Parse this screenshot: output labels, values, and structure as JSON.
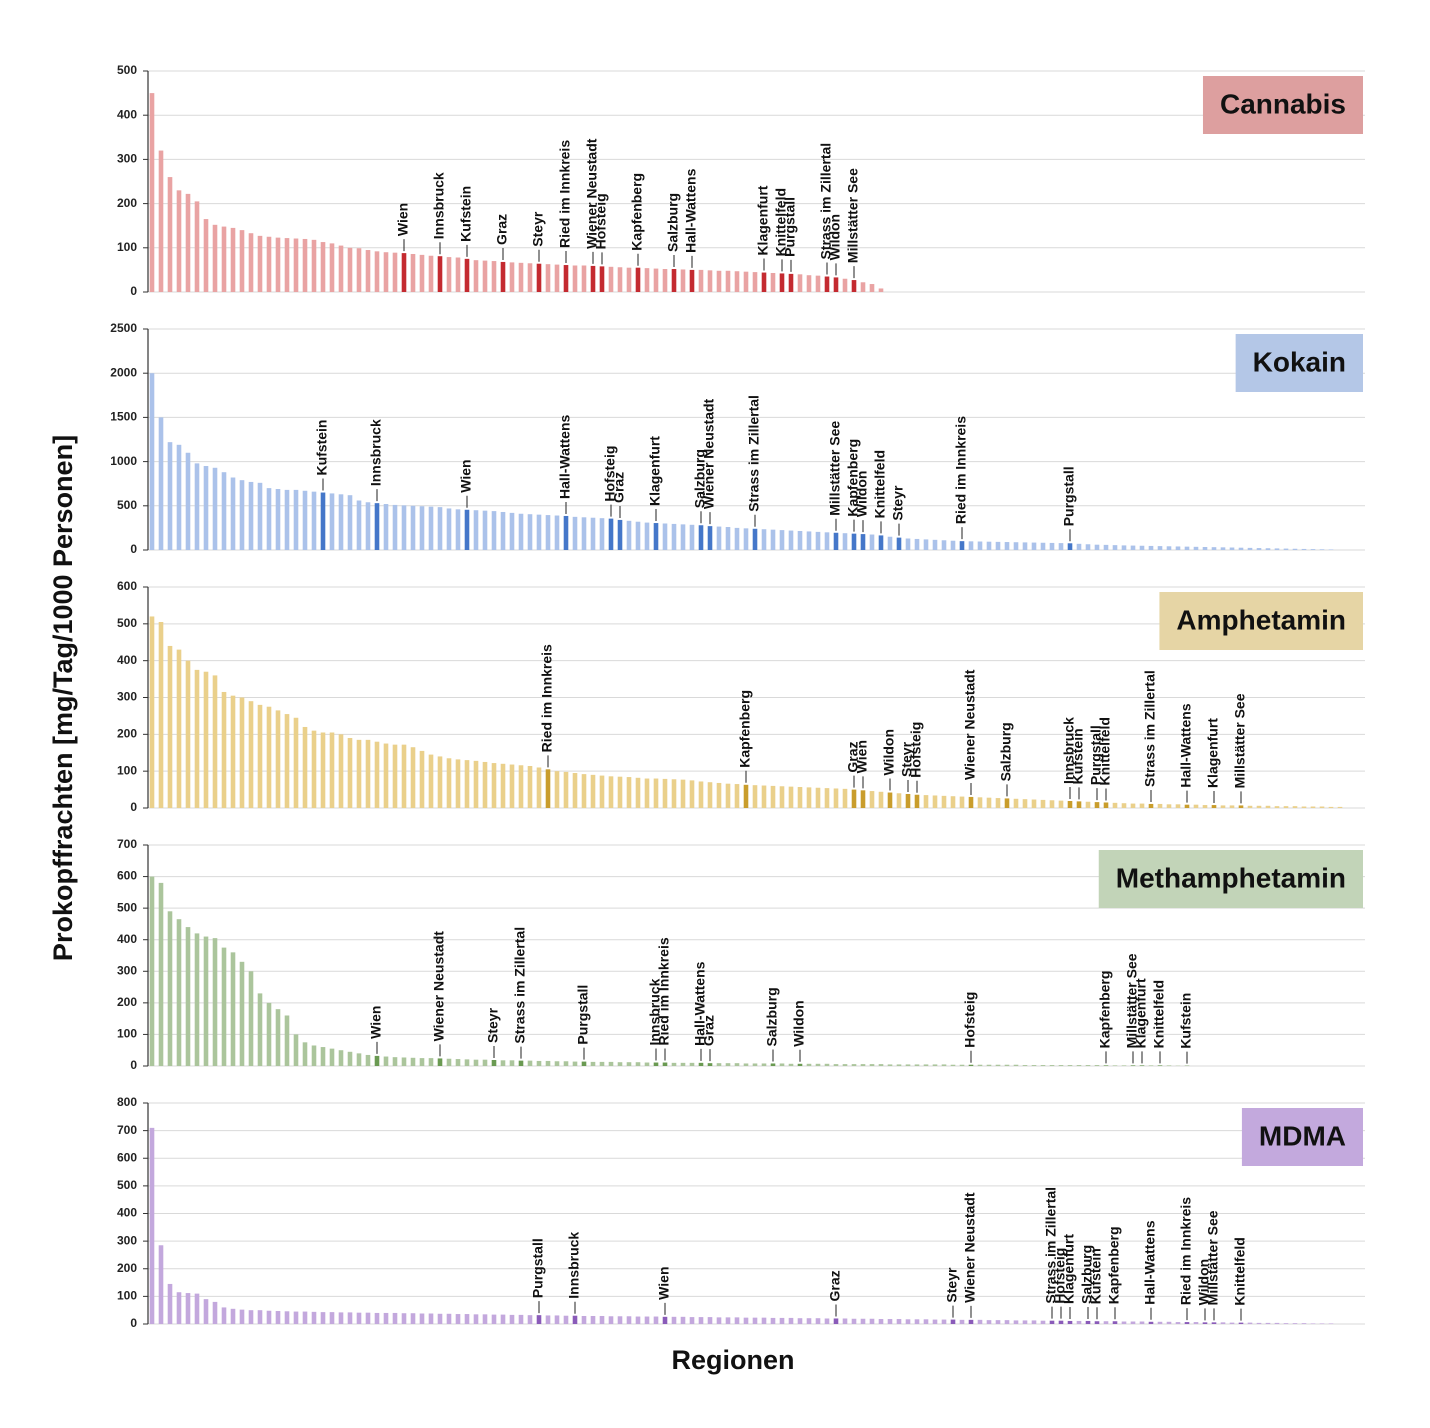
{
  "y_label": "Prokopffrachten [mg/Tag/1000 Personen]",
  "x_label": "Regionen",
  "chart_data": [
    {
      "type": "bar",
      "title": "Cannabis",
      "color": "#e9a3a3",
      "highlight_color": "#c42a30",
      "title_color": "#dd9f9f",
      "ylim": [
        0,
        500
      ],
      "yticks": [
        0,
        100,
        200,
        300,
        400,
        500
      ],
      "categories": [
        null,
        null,
        null,
        null,
        null,
        null,
        null,
        null,
        null,
        null,
        null,
        null,
        null,
        null,
        null,
        null,
        null,
        null,
        null,
        null,
        null,
        null,
        null,
        null,
        null,
        null,
        null,
        null,
        "Wien",
        null,
        null,
        null,
        "Innsbruck",
        null,
        null,
        "Kufstein",
        null,
        null,
        null,
        "Graz",
        null,
        null,
        null,
        "Steyr",
        null,
        null,
        "Ried im Innkreis",
        null,
        null,
        "Wiener Neustadt",
        "Hofsteig",
        null,
        null,
        null,
        "Kapfenberg",
        null,
        null,
        null,
        "Salzburg",
        null,
        "Hall-Wattens",
        null,
        null,
        null,
        null,
        null,
        null,
        null,
        "Klagenfurt",
        null,
        "Knittelfeld",
        "Purgstall",
        null,
        null,
        null,
        "Strass im Zillertal",
        "Wildon",
        null,
        "Millstätter See",
        null,
        null,
        null
      ],
      "values": [
        450,
        320,
        260,
        230,
        222,
        205,
        165,
        152,
        148,
        145,
        140,
        133,
        127,
        125,
        123,
        122,
        121,
        120,
        118,
        113,
        110,
        105,
        100,
        99,
        95,
        92,
        90,
        89,
        88,
        86,
        84,
        82,
        81,
        79,
        78,
        75,
        72,
        71,
        70,
        68,
        67,
        66,
        65,
        64,
        63,
        62,
        61,
        60,
        60,
        59,
        58,
        57,
        56,
        55,
        55,
        54,
        53,
        52,
        52,
        51,
        50,
        50,
        49,
        48,
        48,
        47,
        46,
        45,
        44,
        43,
        42,
        41,
        40,
        38,
        37,
        35,
        33,
        30,
        27,
        22,
        18,
        8
      ]
    },
    {
      "type": "bar",
      "title": "Kokain",
      "color": "#abc2ea",
      "highlight_color": "#4577c9",
      "title_color": "#b4c7e7",
      "ylim": [
        0,
        2500
      ],
      "yticks": [
        0,
        500,
        1000,
        1500,
        2000,
        2500
      ],
      "categories": [
        null,
        null,
        null,
        null,
        null,
        null,
        null,
        null,
        null,
        null,
        null,
        null,
        null,
        null,
        null,
        null,
        null,
        null,
        null,
        "Kufstein",
        null,
        null,
        null,
        null,
        null,
        "Innsbruck",
        null,
        null,
        null,
        null,
        null,
        null,
        null,
        null,
        null,
        "Wien",
        null,
        null,
        null,
        null,
        null,
        null,
        null,
        null,
        null,
        null,
        "Hall-Wattens",
        null,
        null,
        null,
        null,
        "Hofsteig",
        "Graz",
        null,
        null,
        null,
        "Klagenfurt",
        null,
        null,
        null,
        null,
        "Salzburg",
        "Wiener Neustadt",
        null,
        null,
        null,
        null,
        "Strass im Zillertal",
        null,
        null,
        null,
        null,
        null,
        null,
        null,
        null,
        "Millstätter See",
        null,
        "Kapfenberg",
        "Wildon",
        null,
        "Knittelfeld",
        null,
        "Steyr",
        null,
        null,
        null,
        null,
        null,
        null,
        "Ried im Innkreis",
        null,
        null,
        null,
        null,
        null,
        null,
        null,
        null,
        null,
        null,
        null,
        "Purgstall",
        null,
        null,
        null,
        null,
        null,
        null,
        null,
        null,
        null,
        null,
        null,
        null,
        null,
        null,
        null,
        null,
        null,
        null,
        null,
        null,
        null,
        null,
        null,
        null,
        null,
        null,
        null,
        null,
        null
      ],
      "values": [
        2000,
        1500,
        1220,
        1190,
        1100,
        980,
        950,
        930,
        880,
        820,
        790,
        770,
        760,
        700,
        690,
        680,
        680,
        670,
        660,
        650,
        640,
        630,
        620,
        560,
        540,
        530,
        520,
        510,
        505,
        500,
        495,
        490,
        485,
        470,
        460,
        455,
        450,
        445,
        440,
        430,
        420,
        410,
        405,
        400,
        395,
        390,
        385,
        375,
        370,
        365,
        360,
        355,
        340,
        330,
        320,
        310,
        305,
        300,
        295,
        290,
        285,
        280,
        270,
        265,
        260,
        250,
        245,
        240,
        235,
        230,
        225,
        220,
        215,
        210,
        205,
        200,
        195,
        190,
        185,
        180,
        175,
        165,
        150,
        140,
        130,
        125,
        120,
        115,
        110,
        105,
        100,
        98,
        96,
        94,
        92,
        90,
        88,
        86,
        84,
        82,
        80,
        78,
        76,
        70,
        65,
        60,
        58,
        55,
        52,
        50,
        48,
        46,
        44,
        42,
        40,
        38,
        36,
        34,
        32,
        30,
        28,
        26,
        24,
        22,
        20,
        18,
        16,
        14,
        12,
        10,
        8,
        6
      ]
    },
    {
      "type": "bar",
      "title": "Amphetamin",
      "color": "#ead08b",
      "highlight_color": "#c99d2c",
      "title_color": "#e6d5a5",
      "ylim": [
        0,
        600
      ],
      "yticks": [
        0,
        100,
        200,
        300,
        400,
        500,
        600
      ],
      "categories": [
        null,
        null,
        null,
        null,
        null,
        null,
        null,
        null,
        null,
        null,
        null,
        null,
        null,
        null,
        null,
        null,
        null,
        null,
        null,
        null,
        null,
        null,
        null,
        null,
        null,
        null,
        null,
        null,
        null,
        null,
        null,
        null,
        null,
        null,
        null,
        null,
        null,
        null,
        null,
        null,
        null,
        null,
        null,
        null,
        "Ried im Innkreis",
        null,
        null,
        null,
        null,
        null,
        null,
        null,
        null,
        null,
        null,
        null,
        null,
        null,
        null,
        null,
        null,
        null,
        null,
        null,
        null,
        null,
        "Kapfenberg",
        null,
        null,
        null,
        null,
        null,
        null,
        null,
        null,
        null,
        null,
        null,
        "Graz",
        "Wien",
        null,
        null,
        "Wildon",
        null,
        "Steyr",
        "Hofsteig",
        null,
        null,
        null,
        null,
        null,
        "Wiener Neustadt",
        null,
        null,
        null,
        "Salzburg",
        null,
        null,
        null,
        null,
        null,
        null,
        "Innsbruck",
        "Kufstein",
        null,
        "Purgstall",
        "Knittelfeld",
        null,
        null,
        null,
        null,
        "Strass im Zillertal",
        null,
        null,
        null,
        "Hall-Wattens",
        null,
        null,
        "Klagenfurt",
        null,
        null,
        "Millstätter See",
        null,
        null,
        null,
        null,
        null,
        null,
        null,
        null,
        null,
        null,
        null
      ],
      "values": [
        520,
        505,
        440,
        430,
        400,
        375,
        370,
        360,
        315,
        305,
        300,
        290,
        280,
        275,
        265,
        255,
        245,
        220,
        210,
        205,
        205,
        200,
        190,
        185,
        185,
        180,
        175,
        172,
        172,
        165,
        155,
        145,
        140,
        135,
        132,
        130,
        128,
        125,
        122,
        120,
        118,
        116,
        114,
        110,
        105,
        100,
        98,
        95,
        92,
        90,
        88,
        86,
        85,
        84,
        82,
        80,
        80,
        79,
        78,
        77,
        75,
        72,
        70,
        68,
        66,
        65,
        63,
        62,
        61,
        60,
        59,
        58,
        57,
        56,
        55,
        54,
        53,
        52,
        50,
        48,
        46,
        44,
        42,
        40,
        38,
        36,
        35,
        34,
        33,
        32,
        31,
        30,
        29,
        28,
        27,
        26,
        25,
        24,
        23,
        22,
        21,
        20,
        19,
        18,
        17,
        16,
        15,
        14,
        13,
        12,
        12,
        11,
        11,
        10,
        10,
        9,
        9,
        8,
        8,
        7,
        7,
        7,
        6,
        6,
        6,
        5,
        5,
        5,
        4,
        4,
        4,
        3,
        3
      ]
    },
    {
      "type": "bar",
      "title": "Methamphetamin",
      "color": "#abc59c",
      "highlight_color": "#6a9a52",
      "title_color": "#c2d4b8",
      "ylim": [
        0,
        700
      ],
      "yticks": [
        0,
        100,
        200,
        300,
        400,
        500,
        600,
        700
      ],
      "categories": [
        null,
        null,
        null,
        null,
        null,
        null,
        null,
        null,
        null,
        null,
        null,
        null,
        null,
        null,
        null,
        null,
        null,
        null,
        null,
        null,
        null,
        null,
        null,
        null,
        null,
        "Wien",
        null,
        null,
        null,
        null,
        null,
        null,
        "Wiener Neustadt",
        null,
        null,
        null,
        null,
        null,
        "Steyr",
        null,
        null,
        "Strass im Zillertal",
        null,
        null,
        null,
        null,
        null,
        null,
        "Purgstall",
        null,
        null,
        null,
        null,
        null,
        null,
        null,
        "Innsbruck",
        "Ried im Innkreis",
        null,
        null,
        null,
        "Hall-Wattens",
        "Graz",
        null,
        null,
        null,
        null,
        null,
        null,
        "Salzburg",
        null,
        null,
        "Wildon",
        null,
        null,
        null,
        null,
        null,
        null,
        null,
        null,
        null,
        null,
        null,
        null,
        null,
        null,
        null,
        null,
        null,
        null,
        "Hofsteig",
        null,
        null,
        null,
        null,
        null,
        null,
        null,
        null,
        null,
        null,
        null,
        null,
        null,
        null,
        "Kapfenberg",
        null,
        null,
        "Millstätter See",
        "Klagenfurt",
        null,
        "Knittelfeld",
        null,
        null,
        "Kufstein"
      ],
      "values": [
        600,
        580,
        490,
        465,
        440,
        420,
        410,
        405,
        375,
        360,
        330,
        300,
        230,
        200,
        180,
        160,
        100,
        75,
        65,
        60,
        55,
        50,
        45,
        40,
        35,
        32,
        30,
        28,
        27,
        26,
        25,
        25,
        24,
        23,
        22,
        21,
        20,
        20,
        19,
        18,
        18,
        17,
        17,
        16,
        16,
        15,
        15,
        14,
        14,
        13,
        13,
        13,
        12,
        12,
        12,
        11,
        11,
        11,
        10,
        10,
        10,
        10,
        9,
        9,
        9,
        9,
        8,
        8,
        8,
        8,
        8,
        7,
        7,
        7,
        7,
        7,
        6,
        6,
        6,
        6,
        6,
        6,
        5,
        5,
        5,
        5,
        5,
        5,
        5,
        4,
        4,
        4,
        4,
        4,
        4,
        4,
        4,
        3,
        3,
        3,
        3,
        3,
        3,
        3,
        3,
        3,
        2,
        2,
        2,
        2,
        2,
        2,
        2,
        2,
        1,
        1
      ]
    },
    {
      "type": "bar",
      "title": "MDMA",
      "color": "#c3a8dd",
      "highlight_color": "#8a5bb9",
      "title_color": "#c3a9dd",
      "ylim": [
        0,
        800
      ],
      "yticks": [
        0,
        100,
        200,
        300,
        400,
        500,
        600,
        700,
        800
      ],
      "categories": [
        null,
        null,
        null,
        null,
        null,
        null,
        null,
        null,
        null,
        null,
        null,
        null,
        null,
        null,
        null,
        null,
        null,
        null,
        null,
        null,
        null,
        null,
        null,
        null,
        null,
        null,
        null,
        null,
        null,
        null,
        null,
        null,
        null,
        null,
        null,
        null,
        null,
        null,
        null,
        null,
        null,
        null,
        null,
        "Purgstall",
        null,
        null,
        null,
        "Innsbruck",
        null,
        null,
        null,
        null,
        null,
        null,
        null,
        null,
        null,
        "Wien",
        null,
        null,
        null,
        null,
        null,
        null,
        null,
        null,
        null,
        null,
        null,
        null,
        null,
        null,
        null,
        null,
        null,
        null,
        "Graz",
        null,
        null,
        null,
        null,
        null,
        null,
        null,
        null,
        null,
        null,
        null,
        null,
        "Steyr",
        null,
        "Wiener Neustadt",
        null,
        null,
        null,
        null,
        null,
        null,
        null,
        null,
        "Strass im Zillertal",
        "Hofsteig",
        "Klagenfurt",
        null,
        "Salzburg",
        "Kufstein",
        null,
        "Kapfenberg",
        null,
        null,
        null,
        "Hall-Wattens",
        null,
        null,
        null,
        "Ried im Innkreis",
        null,
        "Wildon",
        "Millstätter See",
        null,
        null,
        "Knittelfeld",
        null,
        null,
        null,
        null,
        null,
        null,
        null,
        null,
        null,
        null
      ],
      "values": [
        710,
        285,
        145,
        115,
        112,
        110,
        90,
        80,
        60,
        55,
        52,
        50,
        50,
        48,
        47,
        46,
        45,
        45,
        44,
        43,
        43,
        42,
        42,
        41,
        41,
        40,
        40,
        40,
        39,
        39,
        38,
        38,
        37,
        37,
        36,
        36,
        35,
        35,
        34,
        34,
        33,
        33,
        32,
        32,
        31,
        31,
        30,
        30,
        29,
        29,
        29,
        28,
        28,
        28,
        27,
        27,
        27,
        26,
        26,
        26,
        25,
        25,
        25,
        24,
        24,
        24,
        23,
        23,
        23,
        22,
        22,
        22,
        21,
        21,
        21,
        20,
        20,
        20,
        19,
        19,
        19,
        18,
        18,
        18,
        17,
        17,
        17,
        16,
        16,
        16,
        15,
        15,
        15,
        14,
        14,
        14,
        13,
        13,
        13,
        12,
        12,
        12,
        11,
        11,
        11,
        10,
        10,
        10,
        9,
        9,
        9,
        8,
        8,
        8,
        7,
        7,
        7,
        6,
        6,
        6,
        5,
        5,
        5,
        4,
        4,
        4,
        3,
        3,
        3,
        2,
        2,
        2
      ]
    }
  ]
}
